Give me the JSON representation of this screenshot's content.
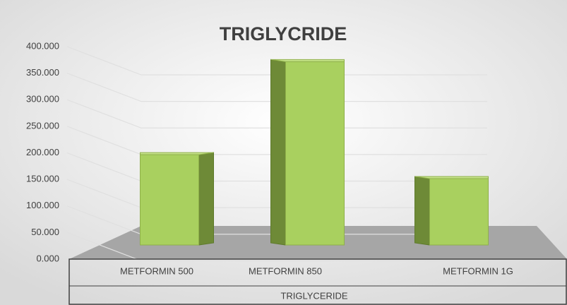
{
  "chart_data": {
    "type": "bar3d",
    "title": "TRIGLYCRIDE",
    "x_label": "TRIGLYCERIDE",
    "categories": [
      "METFORMIN 500",
      "METFORMIN 850",
      "METFORMIN 1G"
    ],
    "values": [
      170,
      345,
      125
    ],
    "color": "#a9d05f",
    "ylim": [
      0,
      400
    ],
    "yticks": [
      {
        "value": 0,
        "label": "0.000"
      },
      {
        "value": 50,
        "label": "50.000"
      },
      {
        "value": 100,
        "label": "100.000"
      },
      {
        "value": 150,
        "label": "150.000"
      },
      {
        "value": 200,
        "label": "200.000"
      },
      {
        "value": 250,
        "label": "250.000"
      },
      {
        "value": 300,
        "label": "300.000"
      },
      {
        "value": 350,
        "label": "350.000"
      },
      {
        "value": 400,
        "label": "400.000"
      }
    ],
    "grid": true
  }
}
